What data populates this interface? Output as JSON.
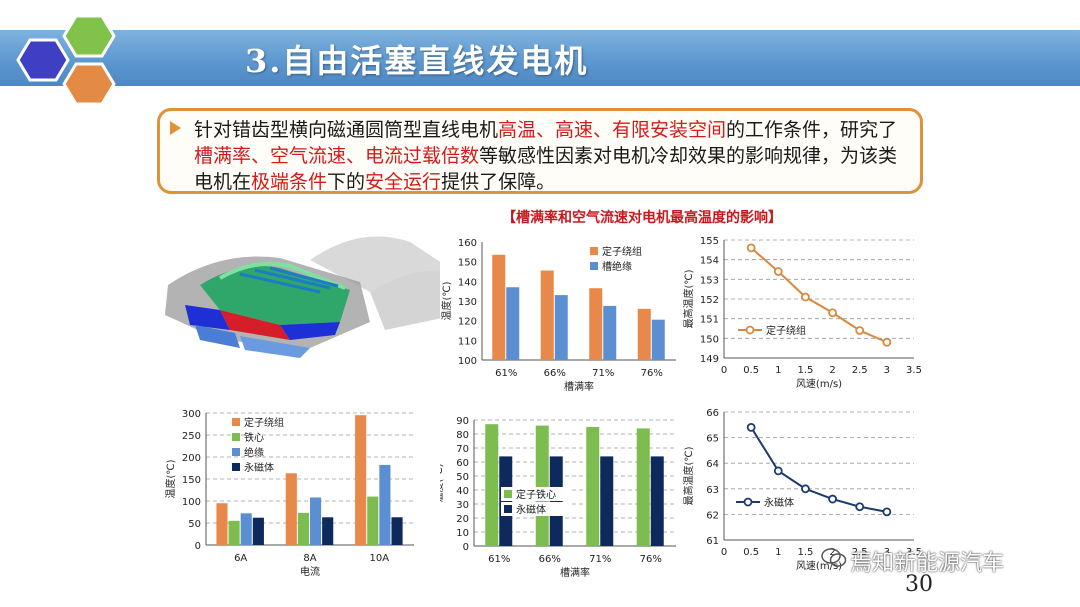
{
  "slide": {
    "title": "3.自由活塞直线发电机",
    "page_number": "30",
    "watermark": "焉知新能源汽车",
    "watermark_icon": "wechat-icon",
    "body_segments": [
      {
        "t": "针对错齿型横向磁通圆筒型直线电机",
        "hl": false
      },
      {
        "t": "高温、高速、有限安装空间",
        "hl": true
      },
      {
        "t": "的工作条件，研究了",
        "hl": false
      },
      {
        "t": "槽满率、空气流速、电流过载倍数",
        "hl": true
      },
      {
        "t": "等敏感性因素对电机冷却效果的影响规律，为该类电机在",
        "hl": false
      },
      {
        "t": "极端条件",
        "hl": true
      },
      {
        "t": "下的",
        "hl": false
      },
      {
        "t": "安全运行",
        "hl": true
      },
      {
        "t": "提供了保障。",
        "hl": false
      }
    ],
    "chart_caption": "【槽满率和空气流速对电机最高温度的影响】",
    "colors": {
      "orange": "#e8884a",
      "blue": "#5b8fd1",
      "green": "#7dbd4f",
      "navy": "#0e2a5c",
      "accent": "#e0923a",
      "highlight": "#d51a1a"
    }
  },
  "chart_data": [
    {
      "type": "bar",
      "id": "slot-fill-temp",
      "categories": [
        "61%",
        "66%",
        "71%",
        "76%"
      ],
      "series": [
        {
          "name": "定子绕组",
          "values": [
            153.5,
            145.5,
            136.5,
            126
          ]
        },
        {
          "name": "槽绝缘",
          "values": [
            137,
            133,
            127.5,
            120.5
          ]
        }
      ],
      "xlabel": "槽满率",
      "ylabel": "温度(℃)",
      "ylim": [
        100,
        160
      ],
      "yticks": [
        "100",
        "110",
        "120",
        "130",
        "140",
        "150",
        "160"
      ],
      "legend": "top-right",
      "grid": false
    },
    {
      "type": "line",
      "id": "airspeed-temp",
      "series": [
        {
          "name": "定子绕组",
          "x": [
            0.5,
            1,
            1.5,
            2,
            2.5,
            3
          ],
          "y": [
            154.6,
            153.4,
            152.1,
            151.3,
            150.4,
            149.8
          ]
        }
      ],
      "xlabel": "风速(m/s)",
      "ylabel": "最高温度(℃)",
      "xlim": [
        0,
        3.5
      ],
      "ylim": [
        149,
        155
      ],
      "xticks": [
        "0",
        "0.5",
        "1",
        "1.5",
        "2",
        "2.5",
        "3",
        "3.5"
      ],
      "yticks": [
        "149",
        "150",
        "151",
        "152",
        "153",
        "154",
        "155"
      ],
      "legend": "bottom-left",
      "grid": true
    },
    {
      "type": "bar",
      "id": "current-temp",
      "categories": [
        "6A",
        "8A",
        "10A"
      ],
      "series": [
        {
          "name": "定子绕组",
          "values": [
            95,
            163,
            295
          ]
        },
        {
          "name": "铁心",
          "values": [
            55,
            73,
            110
          ]
        },
        {
          "name": "绝缘",
          "values": [
            72,
            108,
            182
          ]
        },
        {
          "name": "永磁体",
          "values": [
            62,
            63,
            63
          ]
        }
      ],
      "xlabel": "电流",
      "ylabel": "温度(℃)",
      "ylim": [
        0,
        300
      ],
      "yticks": [
        "0",
        "50",
        "100",
        "150",
        "200",
        "250",
        "300"
      ],
      "legend": "top-left",
      "grid": true
    },
    {
      "type": "bar",
      "id": "slot-fill-core-pm",
      "categories": [
        "61%",
        "66%",
        "71%",
        "76%"
      ],
      "series": [
        {
          "name": "定子铁心",
          "values": [
            87,
            86,
            85,
            84
          ]
        },
        {
          "name": "永磁体",
          "values": [
            64,
            64,
            64,
            64
          ]
        }
      ],
      "xlabel": "槽满率",
      "ylabel": "温度(℃)",
      "ylim": [
        0,
        90
      ],
      "yticks": [
        "0",
        "10",
        "20",
        "30",
        "40",
        "50",
        "60",
        "70",
        "80",
        "90"
      ],
      "legend": "bottom-left",
      "grid": true
    },
    {
      "type": "line",
      "id": "airspeed-pm",
      "series": [
        {
          "name": "永磁体",
          "x": [
            0.5,
            1,
            1.5,
            2,
            2.5,
            3
          ],
          "y": [
            65.4,
            63.7,
            63.0,
            62.6,
            62.3,
            62.1
          ]
        }
      ],
      "xlabel": "风速(m/s)",
      "ylabel": "最高温度(℃)",
      "xlim": [
        0,
        3.5
      ],
      "ylim": [
        61,
        66
      ],
      "xticks": [
        "0",
        "0.5",
        "1",
        "1.5",
        "2",
        "2.5",
        "3",
        "3.5"
      ],
      "yticks": [
        "61",
        "62",
        "63",
        "64",
        "65",
        "66"
      ],
      "legend": "center-left",
      "grid": true
    }
  ]
}
